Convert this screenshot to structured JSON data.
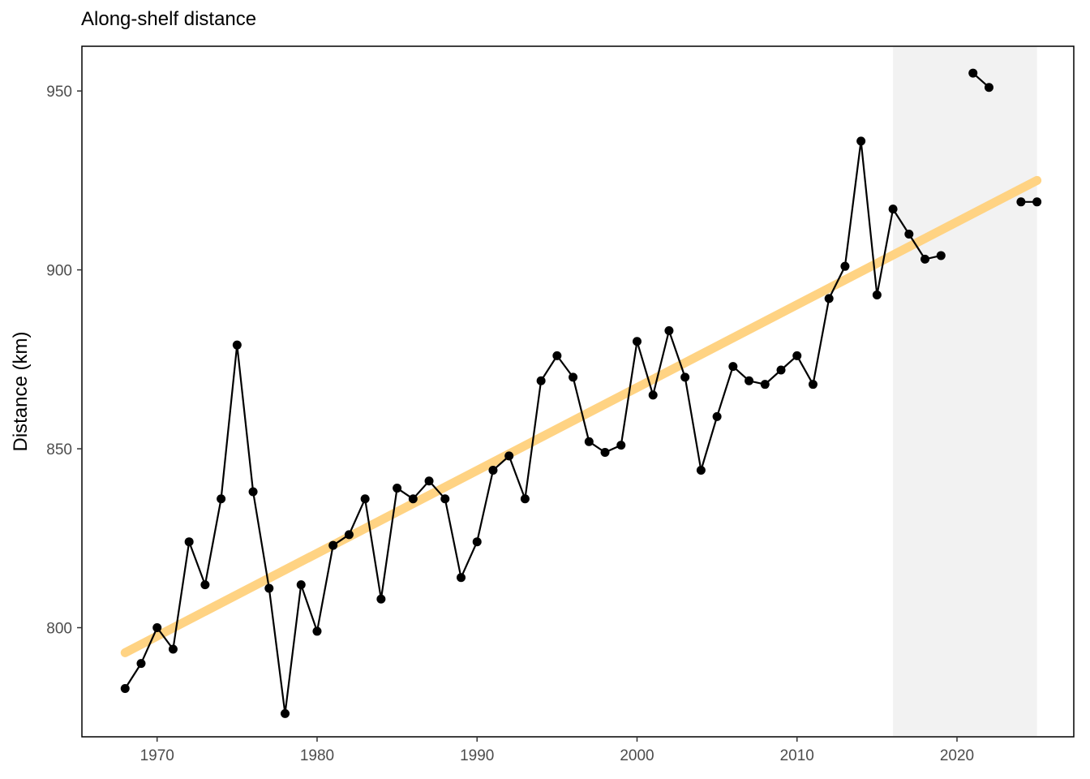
{
  "chart_data": {
    "type": "line",
    "title": "Along-shelf distance",
    "xlabel": "",
    "ylabel": "Distance (km)",
    "xlim": [
      1965.3,
      2027.3
    ],
    "ylim": [
      769.5,
      962.5
    ],
    "x_ticks": [
      1970,
      1980,
      1990,
      2000,
      2010,
      2020
    ],
    "y_ticks": [
      800,
      850,
      900,
      950
    ],
    "grid": false,
    "legend": "none",
    "shaded_region": {
      "x_start": 2016,
      "x_end": 2025,
      "color": "#f2f2f2"
    },
    "series": [
      {
        "segments": [
          {
            "x": [
              1968,
              1969,
              1970,
              1971,
              1972,
              1973,
              1974,
              1975,
              1976,
              1977,
              1978,
              1979,
              1980,
              1981,
              1982,
              1983,
              1984,
              1985,
              1986,
              1987,
              1988,
              1989,
              1990,
              1991,
              1992,
              1993,
              1994,
              1995,
              1996,
              1997,
              1998,
              1999,
              2000,
              2001,
              2002,
              2003,
              2004,
              2005,
              2006,
              2007,
              2008,
              2009,
              2010,
              2011,
              2012,
              2013,
              2014,
              2015,
              2016,
              2017,
              2018,
              2019
            ],
            "y": [
              783,
              790,
              800,
              794,
              824,
              812,
              836,
              879,
              838,
              811,
              776,
              812,
              799,
              823,
              826,
              836,
              808,
              839,
              836,
              841,
              836,
              814,
              824,
              844,
              848,
              836,
              869,
              876,
              870,
              852,
              849,
              851,
              880,
              865,
              883,
              870,
              844,
              859,
              873,
              869,
              868,
              872,
              876,
              868,
              892,
              901,
              936,
              893,
              917,
              910,
              903,
              904
            ]
          },
          {
            "x": [
              2021,
              2022
            ],
            "y": [
              955,
              951
            ]
          },
          {
            "x": [
              2024,
              2025
            ],
            "y": [
              919,
              919
            ]
          }
        ],
        "color": "#000000"
      }
    ],
    "trend_line": {
      "x": [
        1968,
        2025
      ],
      "y": [
        793,
        925
      ],
      "color": "#ffd27f"
    }
  }
}
